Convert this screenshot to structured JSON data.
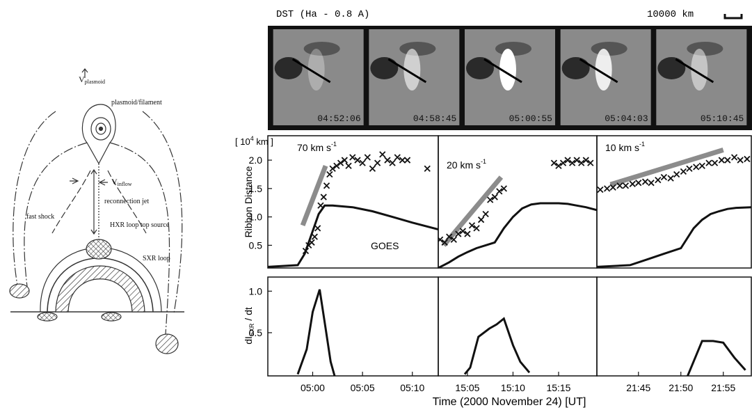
{
  "diagram": {
    "v_plasmoid": [
      "V",
      "plasmoid"
    ],
    "plasmoid": "plasmoid/filament",
    "v_inflow": [
      "V",
      "inflow"
    ],
    "jet": "reconnection jet",
    "shock": "fast shock",
    "hxr": "HXR loop top source",
    "sxr": "SXR loop"
  },
  "images": {
    "title": "DST (Ha - 0.8 A)",
    "scale": "10000 km",
    "times": [
      "04:52:06",
      "04:58:45",
      "05:00:55",
      "05:04:03",
      "05:10:45"
    ]
  },
  "figure": {
    "ylabel_top": "Ribbon Distance",
    "unit": [
      "[ 10",
      "4",
      " km ]"
    ],
    "ylabel_bottom": [
      "dI",
      "SXR",
      " / dt"
    ],
    "xlabel": "Time (2000 November 24)  [UT]"
  },
  "chart_data": [
    {
      "type": "line",
      "speed": "70 km s",
      "speed_exp": "-1",
      "annotation": "GOES",
      "xlim": [
        295.5,
        312.6
      ],
      "ylim": [
        0.1,
        2.43
      ],
      "yticks": [
        0.5,
        {
          "value": 1,
          "label": "1.0"
        },
        1.5,
        {
          "value": 2,
          "label": "2.0"
        }
      ],
      "series": [
        {
          "style": "line",
          "color": "#111111",
          "x": [
            295.5,
            298.5,
            299.2,
            300,
            300.6,
            301.2,
            302,
            304,
            306,
            308,
            310,
            312.6
          ],
          "values": [
            0.12,
            0.15,
            0.35,
            0.75,
            1.05,
            1.2,
            1.2,
            1.17,
            1.1,
            1.0,
            0.9,
            0.78
          ]
        },
        {
          "style": "fit",
          "color": "#8c8c8c",
          "x": [
            299,
            301.3
          ],
          "values": [
            0.85,
            1.9
          ]
        },
        {
          "style": "cross",
          "color": "#111111",
          "x": [
            299.3,
            299.6,
            299.9,
            300.2,
            300.5,
            300.8,
            301.1,
            301.4,
            301.7,
            302,
            302.4,
            302.8,
            303.2,
            303.6,
            304,
            304.5,
            305,
            305.5,
            306,
            306.5,
            307,
            307.5,
            308,
            308.5,
            309,
            309.5,
            311.5
          ],
          "values": [
            0.4,
            0.5,
            0.55,
            0.65,
            0.8,
            1.2,
            1.35,
            1.55,
            1.75,
            1.85,
            1.9,
            1.95,
            2.0,
            1.9,
            2.05,
            2.0,
            1.95,
            2.05,
            1.85,
            1.95,
            2.1,
            2.0,
            1.95,
            2.05,
            2.0,
            2.0,
            1.85
          ]
        }
      ]
    },
    {
      "type": "line",
      "speed": "20 km s",
      "speed_exp": "-1",
      "xlim": [
        901.8,
        919.2
      ],
      "ylim": [
        0.1,
        2.43
      ],
      "series": [
        {
          "style": "line",
          "color": "#111111",
          "x": [
            901.8,
            903,
            904,
            905,
            906,
            907,
            908,
            909,
            910,
            911,
            912,
            913,
            914,
            915,
            916,
            917,
            918,
            919.2
          ],
          "values": [
            0.1,
            0.2,
            0.3,
            0.38,
            0.45,
            0.5,
            0.55,
            0.8,
            1.0,
            1.15,
            1.22,
            1.24,
            1.24,
            1.24,
            1.23,
            1.2,
            1.17,
            1.12
          ]
        },
        {
          "style": "fit",
          "color": "#8c8c8c",
          "x": [
            902.4,
            908.7
          ],
          "values": [
            0.5,
            1.7
          ]
        },
        {
          "style": "cross",
          "color": "#111111",
          "x": [
            902,
            902.5,
            903,
            903.5,
            904,
            904.5,
            905,
            905.5,
            906,
            906.5,
            907,
            907.5,
            908,
            908.5,
            909,
            914.5,
            915,
            915.5,
            916,
            916.5,
            917,
            917.5,
            918,
            918.5
          ],
          "values": [
            0.6,
            0.55,
            0.65,
            0.6,
            0.7,
            0.75,
            0.7,
            0.85,
            0.8,
            0.95,
            1.05,
            1.3,
            1.35,
            1.45,
            1.5,
            1.95,
            1.9,
            1.95,
            2.0,
            1.95,
            2.0,
            1.95,
            2.0,
            1.95
          ]
        }
      ]
    },
    {
      "type": "line",
      "speed": "10 km s",
      "speed_exp": "-1",
      "xlim": [
        1300.1,
        1318.3
      ],
      "ylim": [
        0.1,
        2.43
      ],
      "series": [
        {
          "style": "line",
          "color": "#111111",
          "x": [
            1300.1,
            1304,
            1306,
            1308,
            1310,
            1311.5,
            1312.5,
            1313.5,
            1314.5,
            1315.5,
            1316.5,
            1318.3
          ],
          "values": [
            0.12,
            0.15,
            0.25,
            0.35,
            0.45,
            0.8,
            0.95,
            1.05,
            1.1,
            1.14,
            1.16,
            1.17
          ]
        },
        {
          "style": "fit",
          "color": "#8c8c8c",
          "x": [
            1301.7,
            1315
          ],
          "values": [
            1.57,
            2.18
          ]
        },
        {
          "style": "cross",
          "color": "#111111",
          "x": [
            1300.5,
            1301.3,
            1302,
            1302.8,
            1303.5,
            1304.3,
            1305,
            1305.8,
            1306.5,
            1307.3,
            1308,
            1308.8,
            1309.5,
            1310.3,
            1311,
            1311.8,
            1312.5,
            1313.3,
            1314,
            1314.8,
            1315.5,
            1316.3,
            1317,
            1317.8
          ],
          "values": [
            1.48,
            1.5,
            1.52,
            1.55,
            1.55,
            1.58,
            1.6,
            1.62,
            1.6,
            1.65,
            1.7,
            1.68,
            1.75,
            1.8,
            1.85,
            1.88,
            1.9,
            1.95,
            1.95,
            2.0,
            2.0,
            2.05,
            2.0,
            2.02
          ]
        }
      ]
    },
    {
      "type": "line",
      "xlim": [
        295.5,
        312.6
      ],
      "ylim": [
        -0.02,
        1.17
      ],
      "yticks": [
        0.5,
        {
          "value": 1,
          "label": "1.0"
        }
      ],
      "xticks": [
        {
          "value": 300,
          "label": "05:00"
        },
        {
          "value": 305,
          "label": "05:05"
        },
        {
          "value": 310,
          "label": "05:10"
        }
      ],
      "series": [
        {
          "style": "line",
          "color": "#111111",
          "x": [
            298.5,
            299.4,
            300,
            300.7,
            301.3,
            301.8,
            302.2
          ],
          "values": [
            0,
            0.3,
            0.75,
            1.02,
            0.55,
            0.15,
            -0.02
          ]
        }
      ]
    },
    {
      "type": "line",
      "xlim": [
        901.8,
        919.2
      ],
      "ylim": [
        -0.02,
        1.17
      ],
      "xticks": [
        {
          "value": 905,
          "label": "15:05"
        },
        {
          "value": 910,
          "label": "15:10"
        },
        {
          "value": 915,
          "label": "15:15"
        }
      ],
      "series": [
        {
          "style": "line",
          "color": "#111111",
          "x": [
            904.7,
            905.3,
            906.2,
            907.4,
            908.2,
            909,
            910,
            910.8,
            911.8
          ],
          "values": [
            0,
            0.08,
            0.45,
            0.55,
            0.6,
            0.67,
            0.35,
            0.15,
            0.02
          ]
        }
      ]
    },
    {
      "type": "line",
      "xlim": [
        1300.1,
        1318.3
      ],
      "ylim": [
        -0.02,
        1.17
      ],
      "xticks": [
        {
          "value": 1305,
          "label": "21:45"
        },
        {
          "value": 1310,
          "label": "21:50"
        },
        {
          "value": 1315,
          "label": "21:55"
        }
      ],
      "series": [
        {
          "style": "line",
          "color": "#111111",
          "x": [
            1310.8,
            1312.5,
            1313.8,
            1315,
            1316.3,
            1317.6
          ],
          "values": [
            -0.02,
            0.4,
            0.4,
            0.38,
            0.2,
            0.05
          ]
        }
      ]
    }
  ]
}
